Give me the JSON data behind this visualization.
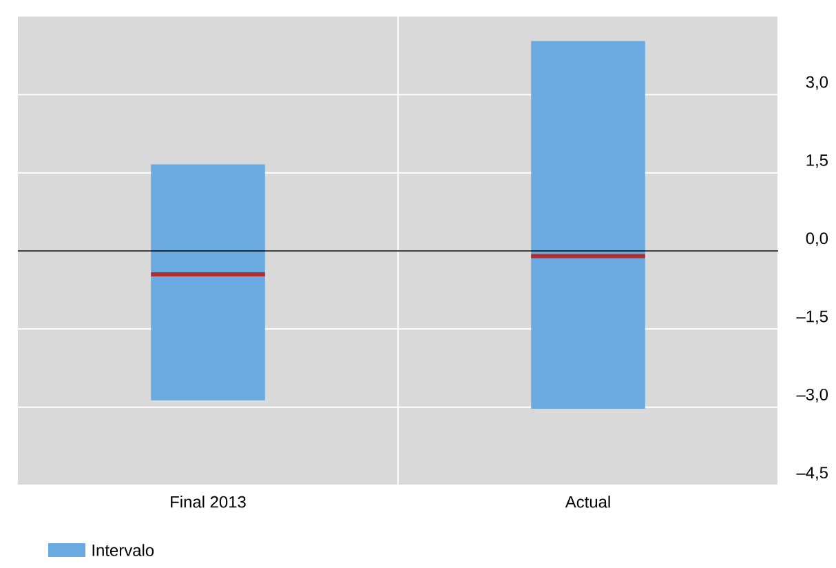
{
  "chart_data": {
    "type": "box",
    "categories": [
      "Final 2013",
      "Actual"
    ],
    "series": [
      {
        "name": "Intervalo",
        "color": "#6aaae0",
        "boxes": [
          {
            "low": -2.87,
            "q1": -2.87,
            "median": -0.45,
            "q3": 1.66,
            "high": 1.66
          },
          {
            "low": -3.03,
            "q1": -3.03,
            "median": -0.1,
            "q3": 4.03,
            "high": 4.03
          }
        ]
      }
    ],
    "ylim": [
      -4.5,
      4.5
    ],
    "yticks": [
      {
        "value": -4.5,
        "label": "–4,5"
      },
      {
        "value": -3,
        "label": "–3,0"
      },
      {
        "value": -1.5,
        "label": "–1,5"
      },
      {
        "value": 0,
        "label": "0,0"
      },
      {
        "value": 1.5,
        "label": "1,5"
      },
      {
        "value": 3,
        "label": "3,0"
      }
    ],
    "ref_lines": [
      {
        "axis": "y",
        "value": 0,
        "color": "#000000"
      }
    ],
    "grid": true,
    "legend": "bottom left"
  }
}
